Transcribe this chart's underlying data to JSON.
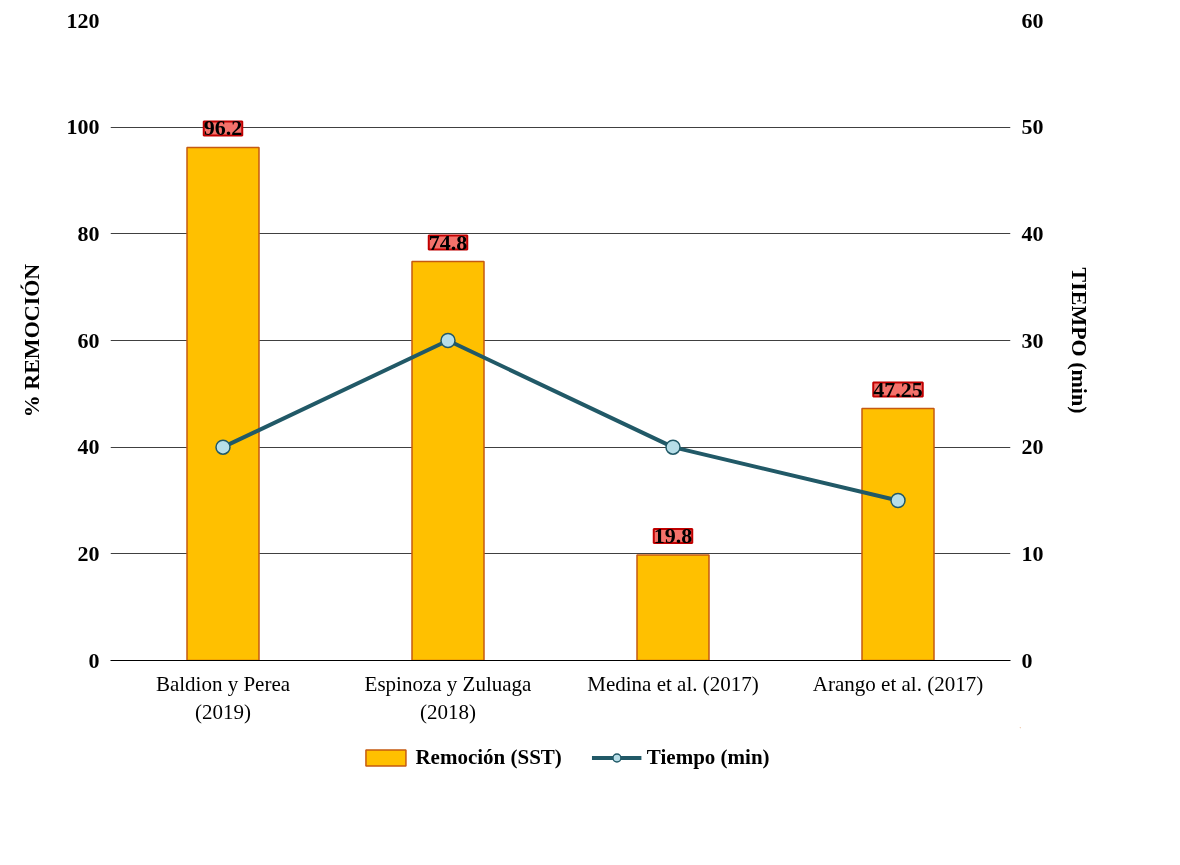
{
  "chart_data": {
    "type": "bar",
    "categories": [
      "Baldion y Perea\n(2019)",
      "Espinoza y Zuluaga\n(2018)",
      "Medina et al. (2017)",
      "Arango et al. (2017)"
    ],
    "series": [
      {
        "name": "Remoción (SST)",
        "color": "#ffc000",
        "values": [
          96.2,
          74.8,
          19.8,
          47.25
        ],
        "value_labels": [
          "96.2",
          "74.8",
          "19.8",
          "47.25"
        ]
      },
      {
        "name": "Tiempo (min)",
        "type": "line",
        "axis": "y2",
        "color": "#215967",
        "marker": "circle",
        "values": [
          20,
          30,
          20,
          15
        ]
      }
    ],
    "ylabel": "% REMOCIÓN",
    "y2label": "TIEMPO (min)",
    "ylim": [
      0,
      120
    ],
    "yticks": [
      0,
      20,
      40,
      60,
      80,
      100,
      120
    ],
    "y2lim": [
      0,
      60
    ],
    "y2ticks": [
      0,
      10,
      20,
      30,
      40,
      50,
      60
    ],
    "grid": "y",
    "legend": "bottom"
  }
}
